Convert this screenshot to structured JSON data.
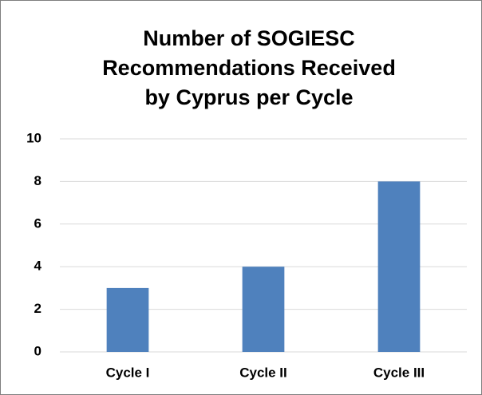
{
  "chart_data": {
    "type": "bar",
    "title": [
      "Number of SOGIESC",
      "Recommendations Received",
      "by Cyprus per Cycle"
    ],
    "categories": [
      "Cycle I",
      "Cycle II",
      "Cycle III"
    ],
    "values": [
      3,
      4,
      8
    ],
    "color": "#4f81bd",
    "ylim": [
      0,
      10
    ],
    "yticks": [
      0,
      2,
      4,
      6,
      8,
      10
    ],
    "grid": true
  }
}
